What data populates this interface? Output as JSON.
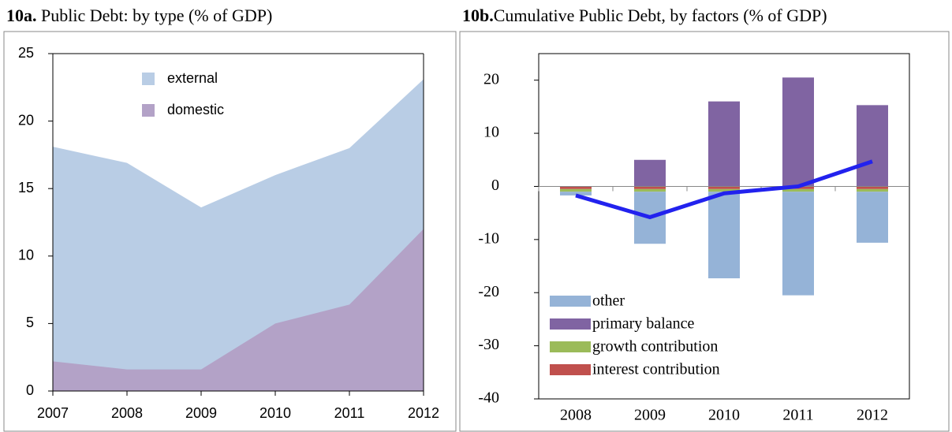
{
  "chart_data": [
    {
      "type": "area",
      "label": "10a.",
      "title": "Public Debt: by type (% of GDP)",
      "x": [
        2007,
        2008,
        2009,
        2010,
        2011,
        2012
      ],
      "xlim": [
        2007,
        2012
      ],
      "xticks": [
        2007,
        2008,
        2009,
        2010,
        2011,
        2012
      ],
      "ylim": [
        0,
        25
      ],
      "yticks": [
        0,
        5,
        10,
        15,
        20,
        25
      ],
      "series": [
        {
          "name": "external",
          "color": "#b9cde5",
          "values": [
            18.1,
            16.9,
            13.6,
            16.0,
            18.0,
            23.1
          ]
        },
        {
          "name": "domestic",
          "color": "#b3a2c7",
          "values": [
            2.2,
            1.6,
            1.6,
            5.0,
            6.4,
            12.0
          ]
        }
      ]
    },
    {
      "type": "stacked_bar",
      "label": "10b.",
      "title": "Cumulative Public Debt, by factors (% of GDP)",
      "categories": [
        "2008",
        "2009",
        "2010",
        "2011",
        "2012"
      ],
      "ylim": [
        -40,
        25
      ],
      "yticks": [
        -40,
        -30,
        -20,
        -10,
        0,
        10,
        20
      ],
      "series": [
        {
          "name": "interest contribution",
          "color": "#c0504d",
          "values": [
            -0.5,
            -0.5,
            -0.5,
            -0.5,
            -0.5
          ]
        },
        {
          "name": "growth contribution",
          "color": "#9bbb59",
          "values": [
            -0.5,
            -0.5,
            -0.5,
            -0.5,
            -0.5
          ]
        },
        {
          "name": "primary balance",
          "color": "#8064a2",
          "values": [
            0,
            5.0,
            16.0,
            20.5,
            15.3
          ]
        },
        {
          "name": "other",
          "color": "#95b3d7",
          "values": [
            -0.7,
            -9.8,
            -16.3,
            -19.5,
            -9.6
          ]
        }
      ],
      "line": {
        "color": "#2222ee",
        "values": [
          -1.7,
          -5.8,
          -1.3,
          0,
          4.7
        ]
      }
    }
  ]
}
